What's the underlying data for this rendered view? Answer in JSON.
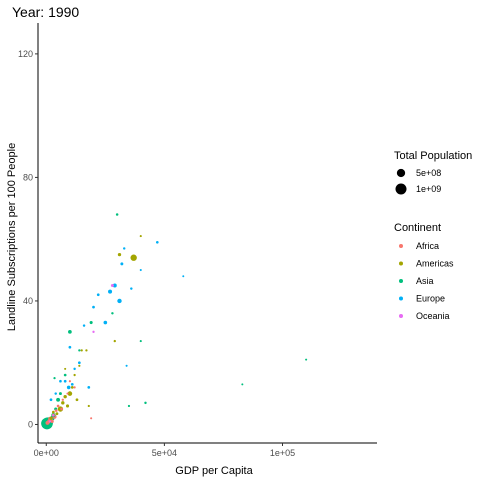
{
  "chart_data": {
    "type": "scatter",
    "title": "Year: 1990",
    "xlabel": "GDP per Capita",
    "ylabel": "Landline Subscriptions per 100 People",
    "xlim": [
      -3500,
      140000
    ],
    "ylim": [
      -6,
      130
    ],
    "x_ticks": [
      {
        "value": 0,
        "label": "0e+00"
      },
      {
        "value": 50000,
        "label": "5e+04"
      },
      {
        "value": 100000,
        "label": "1e+05"
      }
    ],
    "y_ticks": [
      {
        "value": 0,
        "label": "0"
      },
      {
        "value": 40,
        "label": "40"
      },
      {
        "value": 80,
        "label": "80"
      },
      {
        "value": 120,
        "label": "120"
      }
    ],
    "grid": false,
    "size_legend": {
      "title": "Total Population",
      "entries": [
        {
          "label": "5e+08",
          "value": 500000000
        },
        {
          "label": "1e+09",
          "value": 1000000000
        }
      ]
    },
    "color_legend": {
      "title": "Continent",
      "entries": [
        {
          "label": "Africa",
          "color": "#F8766D"
        },
        {
          "label": "Americas",
          "color": "#A3A500"
        },
        {
          "label": "Asia",
          "color": "#00BF7D"
        },
        {
          "label": "Europe",
          "color": "#00B0F6"
        },
        {
          "label": "Oceania",
          "color": "#E76BF3"
        }
      ]
    },
    "series": [
      {
        "name": "Africa",
        "color": "#F8766D",
        "points": [
          {
            "x": 500,
            "y": 0.5,
            "pop": 50000000
          },
          {
            "x": 900,
            "y": 0.8,
            "pop": 30000000
          },
          {
            "x": 1200,
            "y": 1.2,
            "pop": 20000000
          },
          {
            "x": 1800,
            "y": 1.8,
            "pop": 90000000
          },
          {
            "x": 2500,
            "y": 1.0,
            "pop": 25000000
          },
          {
            "x": 3000,
            "y": 3.0,
            "pop": 15000000
          },
          {
            "x": 3500,
            "y": 2.5,
            "pop": 60000000
          },
          {
            "x": 4200,
            "y": 4.5,
            "pop": 10000000
          },
          {
            "x": 5000,
            "y": 6.0,
            "pop": 8000000
          },
          {
            "x": 6500,
            "y": 5.0,
            "pop": 10000000
          },
          {
            "x": 7000,
            "y": 8.0,
            "pop": 3000000
          },
          {
            "x": 9000,
            "y": 10.0,
            "pop": 1000000
          },
          {
            "x": 10000,
            "y": 14.0,
            "pop": 1500000
          },
          {
            "x": 12000,
            "y": 12.0,
            "pop": 2000000
          },
          {
            "x": 19000,
            "y": 2.0,
            "pop": 1000000
          }
        ]
      },
      {
        "name": "Americas",
        "color": "#A3A500",
        "points": [
          {
            "x": 2000,
            "y": 2.0,
            "pop": 20000000
          },
          {
            "x": 3000,
            "y": 4.0,
            "pop": 10000000
          },
          {
            "x": 4500,
            "y": 3.5,
            "pop": 15000000
          },
          {
            "x": 6000,
            "y": 5.0,
            "pop": 150000000
          },
          {
            "x": 7000,
            "y": 7.0,
            "pop": 30000000
          },
          {
            "x": 8000,
            "y": 9.0,
            "pop": 30000000
          },
          {
            "x": 9000,
            "y": 6.0,
            "pop": 20000000
          },
          {
            "x": 10000,
            "y": 10.0,
            "pop": 90000000
          },
          {
            "x": 11000,
            "y": 12.0,
            "pop": 10000000
          },
          {
            "x": 12000,
            "y": 16.0,
            "pop": 3000000
          },
          {
            "x": 13000,
            "y": 8.0,
            "pop": 10000000
          },
          {
            "x": 15000,
            "y": 24.0,
            "pop": 3000000
          },
          {
            "x": 17000,
            "y": 24.0,
            "pop": 3000000
          },
          {
            "x": 18000,
            "y": 6.0,
            "pop": 2000000
          },
          {
            "x": 14000,
            "y": 19.0,
            "pop": 2000000
          },
          {
            "x": 29000,
            "y": 27.0,
            "pop": 3000000
          },
          {
            "x": 31000,
            "y": 55.0,
            "pop": 27000000
          },
          {
            "x": 37000,
            "y": 54.0,
            "pop": 250000000
          },
          {
            "x": 40000,
            "y": 61.0,
            "pop": 1000000
          },
          {
            "x": 8000,
            "y": 18.0,
            "pop": 1000000
          }
        ]
      },
      {
        "name": "Asia",
        "color": "#00BF7D",
        "points": [
          {
            "x": 300,
            "y": 0.3,
            "pop": 1150000000
          },
          {
            "x": 600,
            "y": 0.6,
            "pop": 870000000
          },
          {
            "x": 1500,
            "y": 1.5,
            "pop": 180000000
          },
          {
            "x": 2500,
            "y": 2.0,
            "pop": 110000000
          },
          {
            "x": 3000,
            "y": 3.0,
            "pop": 60000000
          },
          {
            "x": 4000,
            "y": 5.0,
            "pop": 20000000
          },
          {
            "x": 5000,
            "y": 8.0,
            "pop": 50000000
          },
          {
            "x": 6000,
            "y": 10.0,
            "pop": 15000000
          },
          {
            "x": 3500,
            "y": 15.0,
            "pop": 2000000
          },
          {
            "x": 8000,
            "y": 16.0,
            "pop": 10000000
          },
          {
            "x": 10000,
            "y": 30.0,
            "pop": 43000000
          },
          {
            "x": 14000,
            "y": 24.0,
            "pop": 3000000
          },
          {
            "x": 19000,
            "y": 33.0,
            "pop": 20000000
          },
          {
            "x": 28000,
            "y": 36.0,
            "pop": 5000000
          },
          {
            "x": 35000,
            "y": 6.0,
            "pop": 2000000
          },
          {
            "x": 40000,
            "y": 27.0,
            "pop": 1000000
          },
          {
            "x": 42000,
            "y": 7.0,
            "pop": 5000000
          },
          {
            "x": 83000,
            "y": 13.0,
            "pop": 500000
          },
          {
            "x": 110000,
            "y": 21.0,
            "pop": 500000
          },
          {
            "x": 30000,
            "y": 68.0,
            "pop": 6000000
          }
        ]
      },
      {
        "name": "Europe",
        "color": "#00B0F6",
        "points": [
          {
            "x": 2000,
            "y": 8.0,
            "pop": 10000000
          },
          {
            "x": 4000,
            "y": 10.0,
            "pop": 5000000
          },
          {
            "x": 6000,
            "y": 14.0,
            "pop": 8000000
          },
          {
            "x": 8000,
            "y": 14.0,
            "pop": 10000000
          },
          {
            "x": 9500,
            "y": 12.0,
            "pop": 40000000
          },
          {
            "x": 11000,
            "y": 13.0,
            "pop": 10000000
          },
          {
            "x": 12000,
            "y": 18.0,
            "pop": 5000000
          },
          {
            "x": 14000,
            "y": 20.0,
            "pop": 10000000
          },
          {
            "x": 18000,
            "y": 12.0,
            "pop": 10000000
          },
          {
            "x": 20000,
            "y": 38.0,
            "pop": 10000000
          },
          {
            "x": 22000,
            "y": 42.0,
            "pop": 10000000
          },
          {
            "x": 25000,
            "y": 33.0,
            "pop": 40000000
          },
          {
            "x": 27000,
            "y": 43.0,
            "pop": 58000000
          },
          {
            "x": 29000,
            "y": 45.0,
            "pop": 57000000
          },
          {
            "x": 31000,
            "y": 40.0,
            "pop": 80000000
          },
          {
            "x": 32000,
            "y": 52.0,
            "pop": 15000000
          },
          {
            "x": 33000,
            "y": 57.0,
            "pop": 5000000
          },
          {
            "x": 36000,
            "y": 44.0,
            "pop": 5000000
          },
          {
            "x": 40000,
            "y": 50.0,
            "pop": 1000000
          },
          {
            "x": 47000,
            "y": 59.0,
            "pop": 8000000
          },
          {
            "x": 58000,
            "y": 48.0,
            "pop": 400000
          },
          {
            "x": 34000,
            "y": 19.0,
            "pop": 1000000
          },
          {
            "x": 10000,
            "y": 25.0,
            "pop": 10000000
          },
          {
            "x": 16000,
            "y": 32.0,
            "pop": 5000000
          }
        ]
      },
      {
        "name": "Oceania",
        "color": "#E76BF3",
        "points": [
          {
            "x": 1500,
            "y": 1.0,
            "pop": 4000000
          },
          {
            "x": 3000,
            "y": 3.0,
            "pop": 1000000
          },
          {
            "x": 20000,
            "y": 30.0,
            "pop": 3000000
          },
          {
            "x": 28000,
            "y": 45.0,
            "pop": 17000000
          }
        ]
      }
    ]
  }
}
